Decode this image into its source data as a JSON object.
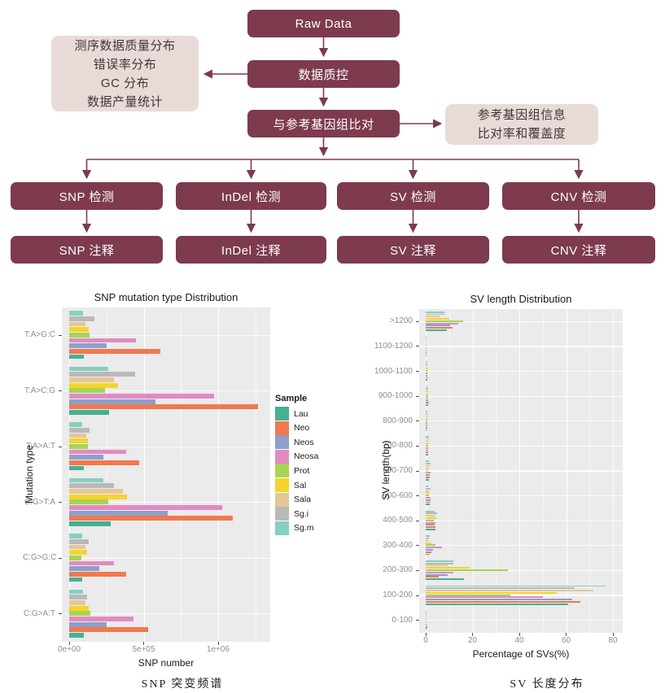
{
  "flowchart": {
    "colors": {
      "box": "#7d3b4d",
      "box_text": "#ffffff",
      "info_box": "#e9dad7",
      "info_text": "#3d3838",
      "arrow": "#7d3b4d"
    },
    "nodes": {
      "raw_data": "Raw Data",
      "qc": "数据质控",
      "align": "与参考基因组比对"
    },
    "qc_outputs": {
      "lines": [
        "测序数据质量分布",
        "错误率分布",
        "GC 分布",
        "数据产量统计"
      ]
    },
    "align_outputs": {
      "lines": [
        "参考基因组信息",
        "比对率和覆盖度"
      ]
    },
    "detect_row": [
      {
        "label": "SNP 检测"
      },
      {
        "label": "InDel 检测"
      },
      {
        "label": "SV 检测"
      },
      {
        "label": "CNV 检测"
      }
    ],
    "annot_row": [
      {
        "label": "SNP 注释"
      },
      {
        "label": "InDel 注释"
      },
      {
        "label": "SV 注释"
      },
      {
        "label": "CNV 注释"
      }
    ]
  },
  "chart_data": [
    {
      "type": "bar",
      "orientation": "horizontal",
      "title": "SNP mutation type Distribution",
      "xlabel": "SNP number",
      "ylabel": "Mutation type",
      "caption": "SNP 突变频谱",
      "legend_title": "Sample",
      "legend_position": "right",
      "grid": true,
      "panel_color": "#ebebeb",
      "categories": [
        "T:A>G:C",
        "T:A>C:G",
        "T:A>A:T",
        "C:G>T:A",
        "C:G>G:C",
        "C:G>A:T"
      ],
      "x_ticks": {
        "values": [
          0,
          500000,
          1000000
        ],
        "labels": [
          "0e+00",
          "5e+05",
          "1e+06"
        ]
      },
      "x_minor_ticks": [
        250000,
        750000,
        1250000
      ],
      "xlim": [
        0,
        1360000
      ],
      "series": [
        {
          "name": "Lau",
          "color": "#45b092",
          "values": [
            97000,
            270000,
            100000,
            280000,
            90000,
            100000
          ]
        },
        {
          "name": "Neo",
          "color": "#f0794f",
          "values": [
            610000,
            1270000,
            470000,
            1100000,
            380000,
            530000
          ]
        },
        {
          "name": "Neos",
          "color": "#8d9fca",
          "values": [
            250000,
            580000,
            230000,
            660000,
            200000,
            250000
          ]
        },
        {
          "name": "Neosa",
          "color": "#e18bc2",
          "values": [
            450000,
            970000,
            380000,
            1030000,
            300000,
            430000
          ]
        },
        {
          "name": "Prot",
          "color": "#a6d455",
          "values": [
            137000,
            240000,
            124000,
            260000,
            80000,
            140000
          ]
        },
        {
          "name": "Sal",
          "color": "#f6d32e",
          "values": [
            130000,
            330000,
            127000,
            390000,
            120000,
            130000
          ]
        },
        {
          "name": "Sala",
          "color": "#e3c795",
          "values": [
            110000,
            300000,
            115000,
            360000,
            110000,
            110000
          ]
        },
        {
          "name": "Sg.i",
          "color": "#b9b9b9",
          "values": [
            170000,
            440000,
            135000,
            300000,
            130000,
            120000
          ]
        },
        {
          "name": "Sg.m",
          "color": "#85d0bf",
          "values": [
            93000,
            260000,
            87000,
            230000,
            87000,
            95000
          ]
        }
      ]
    },
    {
      "type": "bar",
      "orientation": "horizontal",
      "title": "SV length Distribution",
      "xlabel": "Percentage of SVs(%)",
      "ylabel": "SV length(bp)",
      "caption": "SV 长度分布",
      "legend_title": null,
      "legend_position": "none",
      "grid": true,
      "panel_color": "#ebebeb",
      "categories": [
        ">1200",
        "1100-1200",
        "1000-1100",
        "900-1000",
        "800-900",
        "700-800",
        "600-700",
        "500-600",
        "400-500",
        "300-400",
        "200-300",
        "100-200",
        "0-100"
      ],
      "x_ticks": {
        "values": [
          0,
          20,
          40,
          60,
          80
        ],
        "labels": [
          "0",
          "20",
          "40",
          "60",
          "80"
        ]
      },
      "x_minor_ticks": [
        10,
        30,
        50,
        70
      ],
      "xlim": [
        0,
        84
      ],
      "series": [
        {
          "name": "Lau",
          "color": "#45b092",
          "values": [
            9,
            0.3,
            0.8,
            1.2,
            0.8,
            1.0,
            1.5,
            1.9,
            4.3,
            1.7,
            16.3,
            61,
            0.5
          ]
        },
        {
          "name": "Neo",
          "color": "#f0794f",
          "values": [
            11.5,
            0.3,
            1.0,
            1.5,
            0.8,
            1.2,
            1.8,
            2.0,
            4.3,
            2.5,
            5.6,
            66,
            0.8
          ]
        },
        {
          "name": "Neos",
          "color": "#8d9fca",
          "values": [
            10.5,
            0.3,
            0.8,
            1.0,
            0.8,
            1.2,
            1.8,
            2.0,
            3.9,
            3.0,
            9.4,
            62.5,
            0.4
          ]
        },
        {
          "name": "Neosa",
          "color": "#e18bc2",
          "values": [
            14,
            0.5,
            0.8,
            1.2,
            0.8,
            1.2,
            2.0,
            2.0,
            4.3,
            7.0,
            11.7,
            50,
            0.4
          ]
        },
        {
          "name": "Prot",
          "color": "#a6d455",
          "values": [
            16,
            0.3,
            0.8,
            1.0,
            0.8,
            1.0,
            1.2,
            1.5,
            3.5,
            4.0,
            35,
            36,
            0.4
          ]
        },
        {
          "name": "Sal",
          "color": "#f6d32e",
          "values": [
            10,
            0.4,
            1.0,
            1.2,
            1.2,
            1.5,
            1.3,
            1.5,
            4.4,
            2.3,
            18.7,
            56,
            0.5
          ]
        },
        {
          "name": "Sala",
          "color": "#e3c795",
          "values": [
            6,
            0.3,
            0.8,
            1.0,
            0.8,
            1.0,
            1.3,
            1.5,
            4.2,
            1.0,
            9.3,
            71.5,
            0.3
          ]
        },
        {
          "name": "Sg.i",
          "color": "#b9b9b9",
          "values": [
            8.5,
            0.3,
            0.8,
            1.0,
            0.8,
            1.3,
            2.0,
            2.0,
            4.8,
            1.5,
            11.7,
            63.5,
            0.3
          ]
        },
        {
          "name": "Sg.m",
          "color": "#85d0bf",
          "values": [
            8,
            0.4,
            0.8,
            1.0,
            0.8,
            1.3,
            1.5,
            1.2,
            3.8,
            1.7,
            11.7,
            77,
            0.3
          ]
        }
      ]
    }
  ]
}
